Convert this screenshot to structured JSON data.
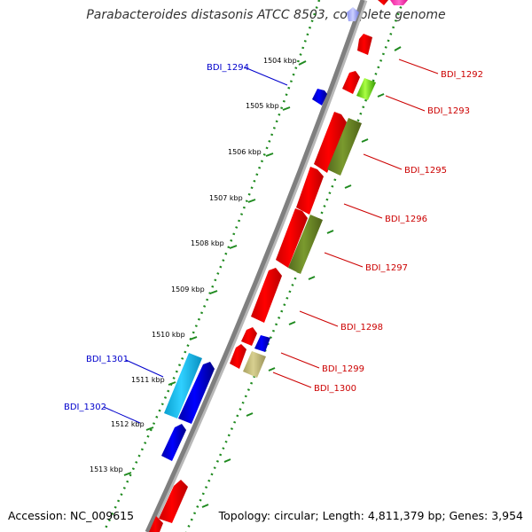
{
  "title": "Parabacteroides distasonis ATCC 8503, complete genome",
  "footer": {
    "accession": "Accession: NC_009615",
    "summary": "Topology: circular; Length: 4,811,379 bp; Genes: 3,954"
  },
  "colors": {
    "backbone": "#7f7f7f",
    "axis_dots": "#1f8a1f",
    "left_label": "#0000cc",
    "right_label": "#cc0000",
    "gene_red": "#ff0000",
    "gene_olive": "#6b8e23",
    "gene_blue": "#0000ee",
    "gene_cyan": "#18bff0",
    "gene_tan": "#c8c080",
    "gene_green": "#66cc00",
    "gene_pink": "#ff44bb",
    "gene_lavender": "#aab0ff"
  },
  "scale_ticks": [
    "1504 kbp",
    "1505 kbp",
    "1506 kbp",
    "1507 kbp",
    "1508 kbp",
    "1509 kbp",
    "1510 kbp",
    "1511 kbp",
    "1512 kbp",
    "1513 kbp"
  ],
  "left_labels": [
    "BDI_1294",
    "BDI_1301",
    "BDI_1302"
  ],
  "right_labels": [
    "BDI_1292",
    "BDI_1293",
    "BDI_1295",
    "BDI_1296",
    "BDI_1297",
    "BDI_1298",
    "BDI_1299",
    "BDI_1300"
  ]
}
